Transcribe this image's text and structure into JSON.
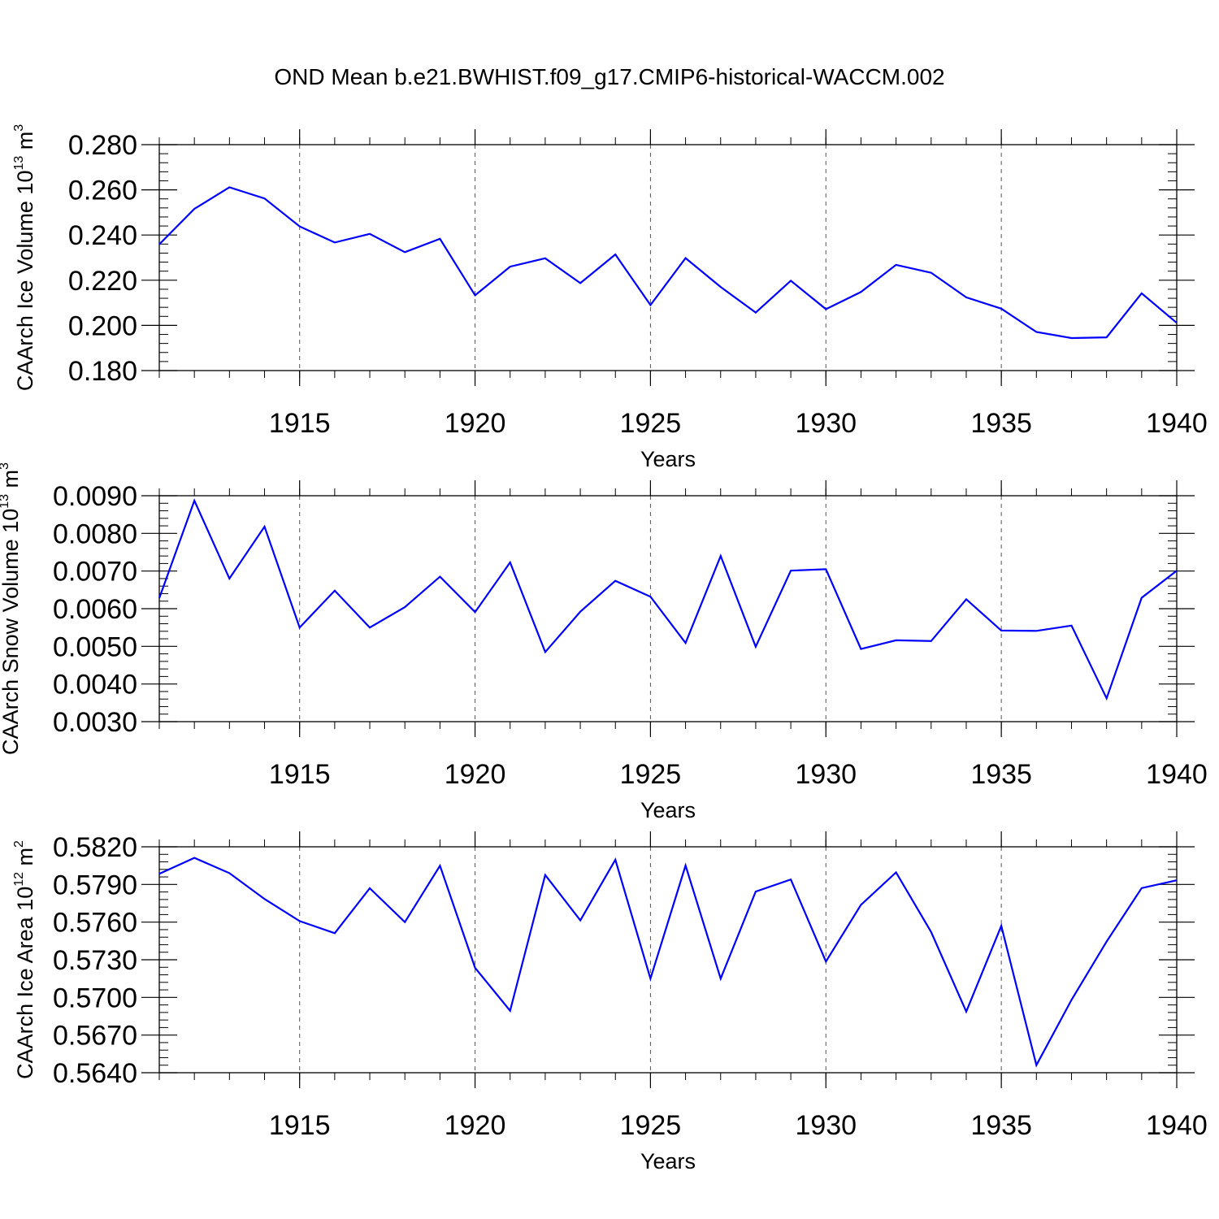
{
  "title": "OND Mean b.e21.BWHIST.f09_g17.CMIP6-historical-WACCM.002",
  "line_color": "#0000ff",
  "chart_data": [
    {
      "type": "line",
      "ylabel_main": "CAArch Ice Volume 10",
      "ylabel_exp": "13",
      "ylabel_unit": "m",
      "ylabel_unit_exp": "3",
      "xlabel": "Years",
      "xlim": [
        1911,
        1940
      ],
      "ylim": [
        0.18,
        0.28
      ],
      "yticks": [
        0.18,
        0.2,
        0.22,
        0.24,
        0.26,
        0.28
      ],
      "yticklabels": [
        "0.180",
        "0.200",
        "0.220",
        "0.240",
        "0.260",
        "0.280"
      ],
      "xticks": [
        1915,
        1920,
        1925,
        1930,
        1935,
        1940
      ],
      "xticklabels": [
        "1915",
        "1920",
        "1925",
        "1930",
        "1935",
        "1940"
      ],
      "x": [
        1911,
        1912,
        1913,
        1914,
        1915,
        1916,
        1917,
        1918,
        1919,
        1920,
        1921,
        1922,
        1923,
        1924,
        1925,
        1926,
        1927,
        1928,
        1929,
        1930,
        1931,
        1932,
        1933,
        1934,
        1935,
        1936,
        1937,
        1938,
        1939,
        1940
      ],
      "y": [
        0.2359,
        0.2516,
        0.2611,
        0.2562,
        0.2438,
        0.2367,
        0.2405,
        0.2324,
        0.2383,
        0.2133,
        0.226,
        0.2297,
        0.2187,
        0.2314,
        0.209,
        0.2298,
        0.217,
        0.2057,
        0.2198,
        0.2072,
        0.2148,
        0.2268,
        0.2233,
        0.2124,
        0.2074,
        0.1971,
        0.1944,
        0.1947,
        0.2142,
        0.2011
      ],
      "grid": "dashed vertical at major x ticks"
    },
    {
      "type": "line",
      "ylabel_main": "CAArch Snow Volume 10",
      "ylabel_exp": "13",
      "ylabel_unit": "m",
      "ylabel_unit_exp": "3",
      "xlabel": "Years",
      "xlim": [
        1911,
        1940
      ],
      "ylim": [
        0.003,
        0.009
      ],
      "yticks": [
        0.003,
        0.004,
        0.005,
        0.006,
        0.007,
        0.008,
        0.009
      ],
      "yticklabels": [
        "0.0030",
        "0.0040",
        "0.0050",
        "0.0060",
        "0.0070",
        "0.0080",
        "0.0090"
      ],
      "xticks": [
        1915,
        1920,
        1925,
        1930,
        1935,
        1940
      ],
      "xticklabels": [
        "1915",
        "1920",
        "1925",
        "1930",
        "1935",
        "1940"
      ],
      "x": [
        1911,
        1912,
        1913,
        1914,
        1915,
        1916,
        1917,
        1918,
        1919,
        1920,
        1921,
        1922,
        1923,
        1924,
        1925,
        1926,
        1927,
        1928,
        1929,
        1930,
        1931,
        1932,
        1933,
        1934,
        1935,
        1936,
        1937,
        1938,
        1939,
        1940
      ],
      "y": [
        0.00628,
        0.00887,
        0.0068,
        0.00818,
        0.0055,
        0.00648,
        0.0055,
        0.00604,
        0.00685,
        0.00591,
        0.00723,
        0.00485,
        0.00592,
        0.00674,
        0.00632,
        0.00509,
        0.0074,
        0.00499,
        0.00701,
        0.00705,
        0.00493,
        0.00516,
        0.00514,
        0.00625,
        0.00542,
        0.00541,
        0.00555,
        0.00362,
        0.00629,
        0.00701
      ],
      "grid": "dashed vertical at major x ticks"
    },
    {
      "type": "line",
      "ylabel_main": "CAArch Ice Area 10",
      "ylabel_exp": "12",
      "ylabel_unit": "m",
      "ylabel_unit_exp": "2",
      "xlabel": "Years",
      "xlim": [
        1911,
        1940
      ],
      "ylim": [
        0.564,
        0.582
      ],
      "yticks": [
        0.564,
        0.567,
        0.57,
        0.573,
        0.576,
        0.579,
        0.582
      ],
      "yticklabels": [
        "0.5640",
        "0.5670",
        "0.5700",
        "0.5730",
        "0.5760",
        "0.5790",
        "0.5820"
      ],
      "xticks": [
        1915,
        1920,
        1925,
        1930,
        1935,
        1940
      ],
      "xticklabels": [
        "1915",
        "1920",
        "1925",
        "1930",
        "1935",
        "1940"
      ],
      "x": [
        1911,
        1912,
        1913,
        1914,
        1915,
        1916,
        1917,
        1918,
        1919,
        1920,
        1921,
        1922,
        1923,
        1924,
        1925,
        1926,
        1927,
        1928,
        1929,
        1930,
        1931,
        1932,
        1933,
        1934,
        1935,
        1936,
        1937,
        1938,
        1939,
        1940
      ],
      "y": [
        0.57985,
        0.58112,
        0.5799,
        0.57784,
        0.57608,
        0.57512,
        0.5787,
        0.576,
        0.58049,
        0.57236,
        0.56894,
        0.57975,
        0.57614,
        0.58097,
        0.5715,
        0.58051,
        0.5715,
        0.57843,
        0.5794,
        0.57286,
        0.57738,
        0.57996,
        0.57521,
        0.56887,
        0.5757,
        0.5646,
        0.5698,
        0.57445,
        0.57871,
        0.57933
      ],
      "grid": "dashed vertical at major x ticks"
    }
  ]
}
